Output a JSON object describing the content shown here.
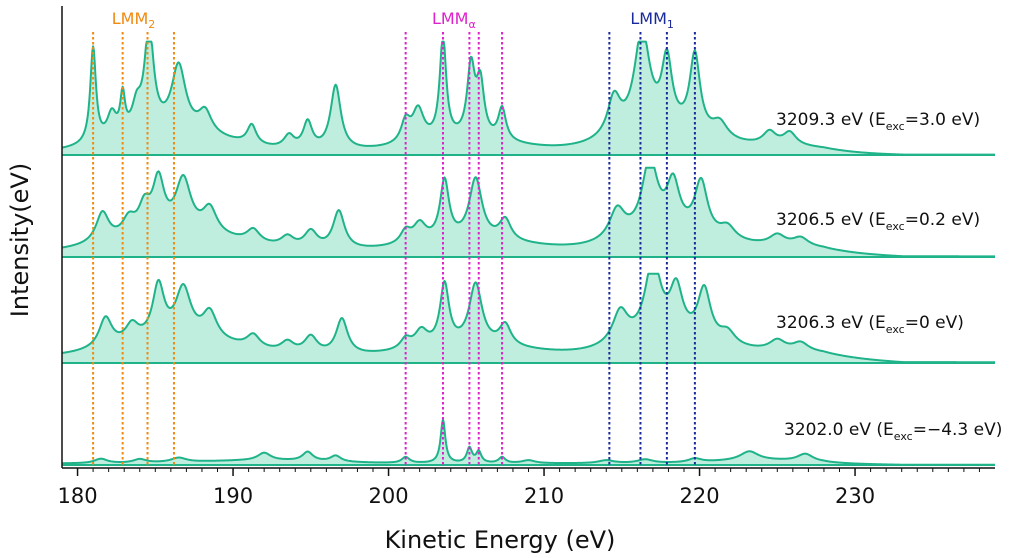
{
  "chart_data": {
    "type": "line",
    "title": "",
    "xlabel": "Kinetic Energy (eV)",
    "ylabel": "Intensity(eV)",
    "xlim": [
      179,
      239
    ],
    "x_ticks": [
      180,
      190,
      200,
      210,
      220,
      230
    ],
    "fill_under": true,
    "line_color": "#20b38a",
    "fill_color": "#bfeede",
    "grid": false,
    "peak_groups": [
      {
        "name": "LMM",
        "subscript": "2",
        "color": "#f08a10",
        "positions": [
          181.0,
          182.9,
          184.5,
          186.2
        ]
      },
      {
        "name": "LMM",
        "subscript": "α",
        "color": "#dd22cc",
        "positions": [
          201.1,
          203.5,
          205.2,
          205.8,
          207.3
        ]
      },
      {
        "name": "LMM",
        "subscript": "1",
        "color": "#1a2a9a",
        "positions": [
          214.2,
          216.2,
          217.9,
          219.7
        ]
      }
    ],
    "series": [
      {
        "name": "3209.3 eV (E_exc=3.0 eV)",
        "label_main": "3209.3 eV (E",
        "label_sub": "exc",
        "label_tail": "=3.0 eV)",
        "baseline": 0.02,
        "peaks": [
          [
            181.0,
            0.88,
            0.22
          ],
          [
            182.2,
            0.22,
            0.35
          ],
          [
            182.9,
            0.35,
            0.18
          ],
          [
            183.8,
            0.22,
            0.35
          ],
          [
            184.6,
            0.95,
            0.35
          ],
          [
            186.5,
            0.6,
            0.55
          ],
          [
            188.2,
            0.2,
            0.5
          ],
          [
            191.2,
            0.18,
            0.35
          ],
          [
            193.6,
            0.12,
            0.4
          ],
          [
            194.8,
            0.25,
            0.35
          ],
          [
            196.6,
            0.6,
            0.4
          ],
          [
            201.1,
            0.2,
            0.35
          ],
          [
            201.9,
            0.3,
            0.45
          ],
          [
            203.5,
            0.95,
            0.25
          ],
          [
            205.3,
            0.65,
            0.3
          ],
          [
            205.9,
            0.5,
            0.3
          ],
          [
            207.3,
            0.3,
            0.3
          ],
          [
            214.5,
            0.35,
            0.5
          ],
          [
            216.3,
            0.92,
            0.6
          ],
          [
            217.9,
            0.62,
            0.4
          ],
          [
            219.7,
            0.72,
            0.4
          ],
          [
            221.3,
            0.15,
            0.6
          ],
          [
            224.5,
            0.12,
            0.5
          ],
          [
            225.8,
            0.12,
            0.5
          ]
        ],
        "humps": [
          [
            186.0,
            0.18,
            3.5
          ],
          [
            205.0,
            0.1,
            3.5
          ],
          [
            217.5,
            0.18,
            3.0
          ],
          [
            225.5,
            0.05,
            3.0
          ]
        ]
      },
      {
        "name": "3206.5 eV (E_exc=0.2 eV)",
        "label_main": "3206.5 eV (E",
        "label_sub": "exc",
        "label_tail": "=0.2 eV)",
        "baseline": 0.05,
        "peaks": [
          [
            181.6,
            0.35,
            0.5
          ],
          [
            183.3,
            0.2,
            0.5
          ],
          [
            184.3,
            0.3,
            0.45
          ],
          [
            185.2,
            0.6,
            0.45
          ],
          [
            186.8,
            0.62,
            0.6
          ],
          [
            188.5,
            0.3,
            0.55
          ],
          [
            191.3,
            0.15,
            0.5
          ],
          [
            193.5,
            0.12,
            0.5
          ],
          [
            195.0,
            0.2,
            0.5
          ],
          [
            196.8,
            0.45,
            0.45
          ],
          [
            201.1,
            0.15,
            0.4
          ],
          [
            202.0,
            0.22,
            0.5
          ],
          [
            203.6,
            0.7,
            0.35
          ],
          [
            205.6,
            0.72,
            0.5
          ],
          [
            207.5,
            0.25,
            0.45
          ],
          [
            214.7,
            0.35,
            0.6
          ],
          [
            216.8,
            0.85,
            0.6
          ],
          [
            218.3,
            0.55,
            0.5
          ],
          [
            220.1,
            0.62,
            0.5
          ],
          [
            221.8,
            0.15,
            0.6
          ],
          [
            225.0,
            0.12,
            0.6
          ],
          [
            226.5,
            0.1,
            0.6
          ]
        ],
        "humps": [
          [
            186.5,
            0.2,
            4.0
          ],
          [
            205.5,
            0.12,
            4.0
          ],
          [
            218.0,
            0.2,
            3.0
          ],
          [
            225.5,
            0.06,
            3.0
          ]
        ]
      },
      {
        "name": "3206.3 eV (E_exc=0 eV)",
        "label_main": "3206.3 eV (E",
        "label_sub": "exc",
        "label_tail": "=0 eV)",
        "baseline": 0.06,
        "peaks": [
          [
            181.8,
            0.35,
            0.5
          ],
          [
            183.5,
            0.2,
            0.5
          ],
          [
            185.2,
            0.62,
            0.45
          ],
          [
            186.8,
            0.58,
            0.6
          ],
          [
            188.5,
            0.32,
            0.55
          ],
          [
            191.3,
            0.15,
            0.5
          ],
          [
            193.5,
            0.12,
            0.5
          ],
          [
            195.0,
            0.2,
            0.5
          ],
          [
            197.0,
            0.42,
            0.45
          ],
          [
            201.1,
            0.12,
            0.4
          ],
          [
            202.1,
            0.2,
            0.5
          ],
          [
            203.6,
            0.72,
            0.35
          ],
          [
            205.6,
            0.72,
            0.5
          ],
          [
            207.5,
            0.25,
            0.45
          ],
          [
            214.9,
            0.38,
            0.6
          ],
          [
            217.0,
            0.9,
            0.6
          ],
          [
            218.5,
            0.55,
            0.5
          ],
          [
            220.3,
            0.6,
            0.5
          ],
          [
            221.8,
            0.15,
            0.6
          ],
          [
            225.0,
            0.12,
            0.6
          ],
          [
            226.5,
            0.1,
            0.6
          ]
        ],
        "humps": [
          [
            186.5,
            0.2,
            4.0
          ],
          [
            205.5,
            0.12,
            4.0
          ],
          [
            218.0,
            0.2,
            3.0
          ],
          [
            226.0,
            0.06,
            3.0
          ]
        ]
      },
      {
        "name": "3202.0 eV (E_exc=-4.3 eV)",
        "label_main": "3202.0 eV (E",
        "label_sub": "exc",
        "label_tail": "=−4.3 eV)",
        "baseline": 0.02,
        "peaks": [
          [
            181.5,
            0.06,
            0.5
          ],
          [
            184.0,
            0.05,
            0.5
          ],
          [
            186.5,
            0.06,
            0.6
          ],
          [
            192.0,
            0.1,
            0.5
          ],
          [
            194.8,
            0.12,
            0.4
          ],
          [
            196.6,
            0.08,
            0.4
          ],
          [
            201.1,
            0.08,
            0.3
          ],
          [
            203.5,
            0.58,
            0.18
          ],
          [
            205.2,
            0.2,
            0.2
          ],
          [
            205.8,
            0.15,
            0.2
          ],
          [
            207.3,
            0.08,
            0.25
          ],
          [
            209.0,
            0.04,
            0.5
          ],
          [
            214.0,
            0.04,
            0.6
          ],
          [
            216.5,
            0.05,
            0.6
          ],
          [
            219.7,
            0.05,
            0.5
          ],
          [
            223.2,
            0.12,
            0.7
          ],
          [
            226.8,
            0.1,
            0.6
          ]
        ],
        "humps": [
          [
            192.0,
            0.04,
            4.0
          ],
          [
            224.0,
            0.04,
            3.0
          ]
        ]
      }
    ]
  }
}
